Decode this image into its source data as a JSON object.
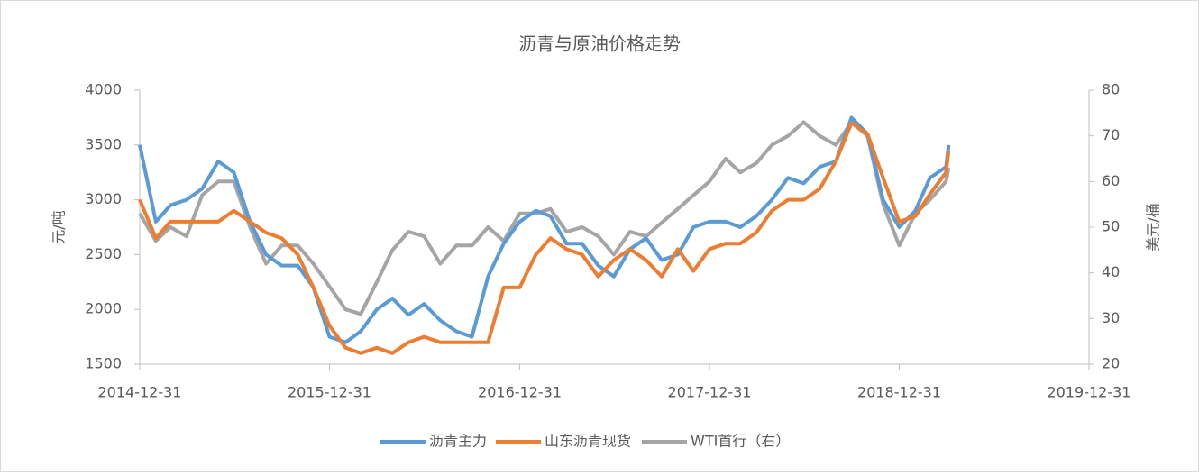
{
  "chart_data": {
    "type": "line",
    "title": "沥青与原油价格走势",
    "ylabel": "元/吨",
    "y2label": "美元/桶",
    "x": [
      "2014-12-31",
      "2015-01-31",
      "2015-02-28",
      "2015-03-31",
      "2015-04-30",
      "2015-05-31",
      "2015-06-30",
      "2015-07-31",
      "2015-08-31",
      "2015-09-30",
      "2015-10-31",
      "2015-11-30",
      "2015-12-31",
      "2016-01-31",
      "2016-02-29",
      "2016-03-31",
      "2016-04-30",
      "2016-05-31",
      "2016-06-30",
      "2016-07-31",
      "2016-08-31",
      "2016-09-30",
      "2016-10-31",
      "2016-11-30",
      "2016-12-31",
      "2017-01-31",
      "2017-02-28",
      "2017-03-31",
      "2017-04-30",
      "2017-05-31",
      "2017-06-30",
      "2017-07-31",
      "2017-08-31",
      "2017-09-30",
      "2017-10-31",
      "2017-11-30",
      "2017-12-31",
      "2018-01-31",
      "2018-02-28",
      "2018-03-31",
      "2018-04-30",
      "2018-05-31",
      "2018-06-30",
      "2018-07-31",
      "2018-08-31",
      "2018-09-30",
      "2018-10-31",
      "2018-11-30",
      "2018-12-31",
      "2019-01-31",
      "2019-02-28",
      "2019-03-31",
      "2019-04-05"
    ],
    "series": [
      {
        "name": "沥青主力",
        "color": "#5b9bd5",
        "axis": "y",
        "values": [
          3500,
          2800,
          2950,
          3000,
          3100,
          3350,
          3250,
          2800,
          2500,
          2400,
          2400,
          2200,
          1750,
          1700,
          1800,
          2000,
          2100,
          1950,
          2050,
          1900,
          1800,
          1750,
          2300,
          2600,
          2800,
          2900,
          2850,
          2600,
          2600,
          2400,
          2300,
          2550,
          2650,
          2450,
          2500,
          2750,
          2800,
          2800,
          2750,
          2850,
          3000,
          3200,
          3150,
          3300,
          3350,
          3750,
          3600,
          3000,
          2750,
          2900,
          3200,
          3300,
          3500
        ]
      },
      {
        "name": "山东沥青现货",
        "color": "#ed7d31",
        "axis": "y",
        "values": [
          3000,
          2650,
          2800,
          2800,
          2800,
          2800,
          2900,
          2800,
          2700,
          2650,
          2500,
          2200,
          1850,
          1650,
          1600,
          1650,
          1600,
          1700,
          1750,
          1700,
          1700,
          1700,
          1700,
          2200,
          2200,
          2500,
          2650,
          2550,
          2500,
          2300,
          2450,
          2550,
          2450,
          2300,
          2550,
          2350,
          2550,
          2600,
          2600,
          2700,
          2900,
          3000,
          3000,
          3100,
          3350,
          3700,
          3600,
          3200,
          2800,
          2850,
          3050,
          3250,
          3450
        ]
      },
      {
        "name": "WTI首行（右）",
        "color": "#a5a5a5",
        "axis": "y2",
        "values": [
          53,
          47,
          50,
          48,
          57,
          60,
          60,
          50,
          42,
          46,
          46,
          42,
          37,
          32,
          31,
          38,
          45,
          49,
          48,
          42,
          46,
          46,
          50,
          47,
          53,
          53,
          54,
          49,
          50,
          48,
          44,
          49,
          48,
          51,
          54,
          57,
          60,
          65,
          62,
          64,
          68,
          70,
          73,
          70,
          68,
          73,
          70,
          55,
          46,
          53,
          56,
          60,
          63
        ]
      }
    ],
    "xlim": [
      "2014-12-31",
      "2019-12-31"
    ],
    "xticks": [
      "2014-12-31",
      "2015-12-31",
      "2016-12-31",
      "2017-12-31",
      "2018-12-31",
      "2019-12-31"
    ],
    "ylim": [
      1500,
      4000
    ],
    "yticks": [
      1500,
      2000,
      2500,
      3000,
      3500,
      4000
    ],
    "y2lim": [
      20,
      80
    ],
    "y2ticks": [
      20,
      30,
      40,
      50,
      60,
      70,
      80
    ],
    "legend": "bottom"
  }
}
